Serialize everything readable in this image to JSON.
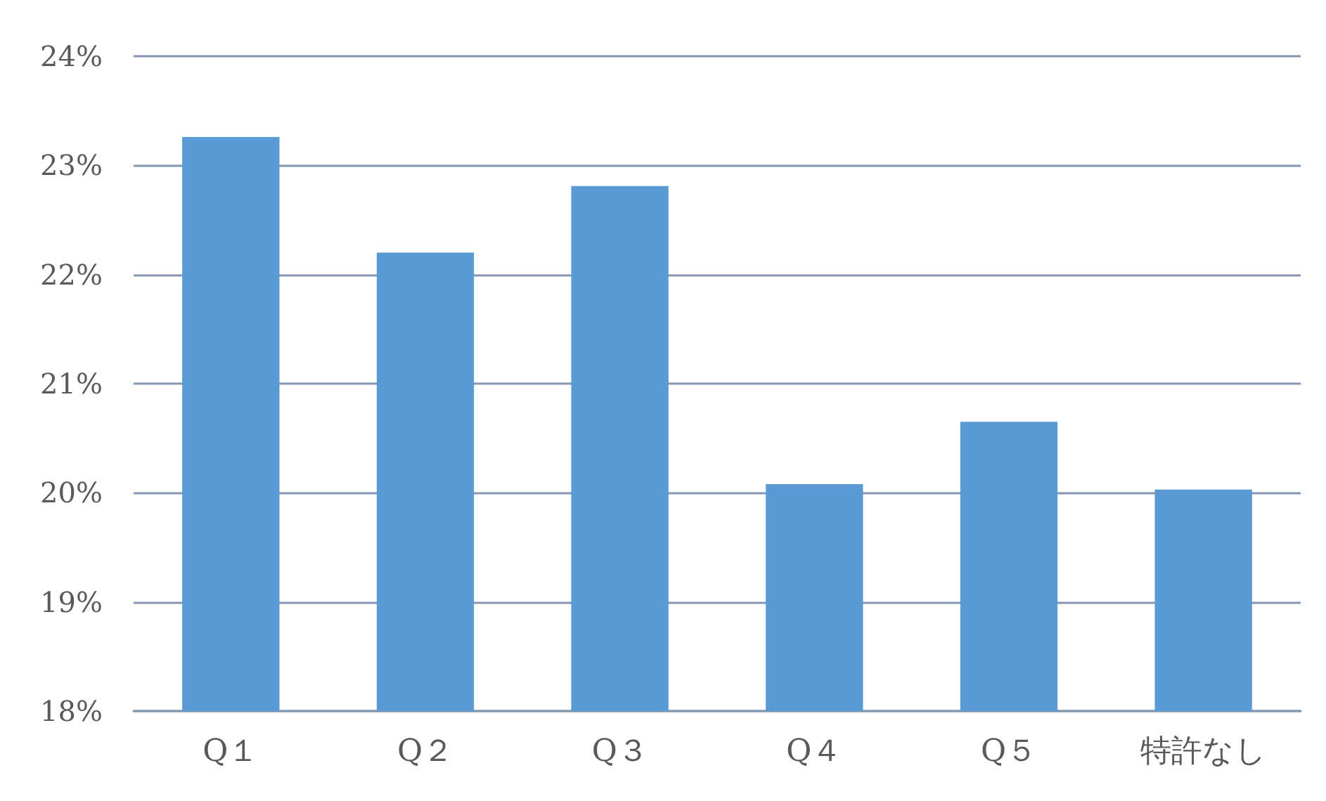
{
  "chart_data": {
    "type": "bar",
    "categories": [
      "Q１",
      "Q２",
      "Q３",
      "Q４",
      "Q５",
      "特許なし"
    ],
    "series": [
      {
        "color": "#5b9bd5",
        "values": [
          23.26,
          22.2,
          22.81,
          20.08,
          20.65,
          20.03
        ]
      }
    ],
    "ylim": [
      18,
      24
    ],
    "yticks": [
      {
        "value": 18,
        "label": "18%"
      },
      {
        "value": 19,
        "label": "19%"
      },
      {
        "value": 20,
        "label": "20%"
      },
      {
        "value": 21,
        "label": "21%"
      },
      {
        "value": 22,
        "label": "22%"
      },
      {
        "value": 23,
        "label": "23%"
      },
      {
        "value": 24,
        "label": "24%"
      }
    ],
    "grid": "y"
  }
}
